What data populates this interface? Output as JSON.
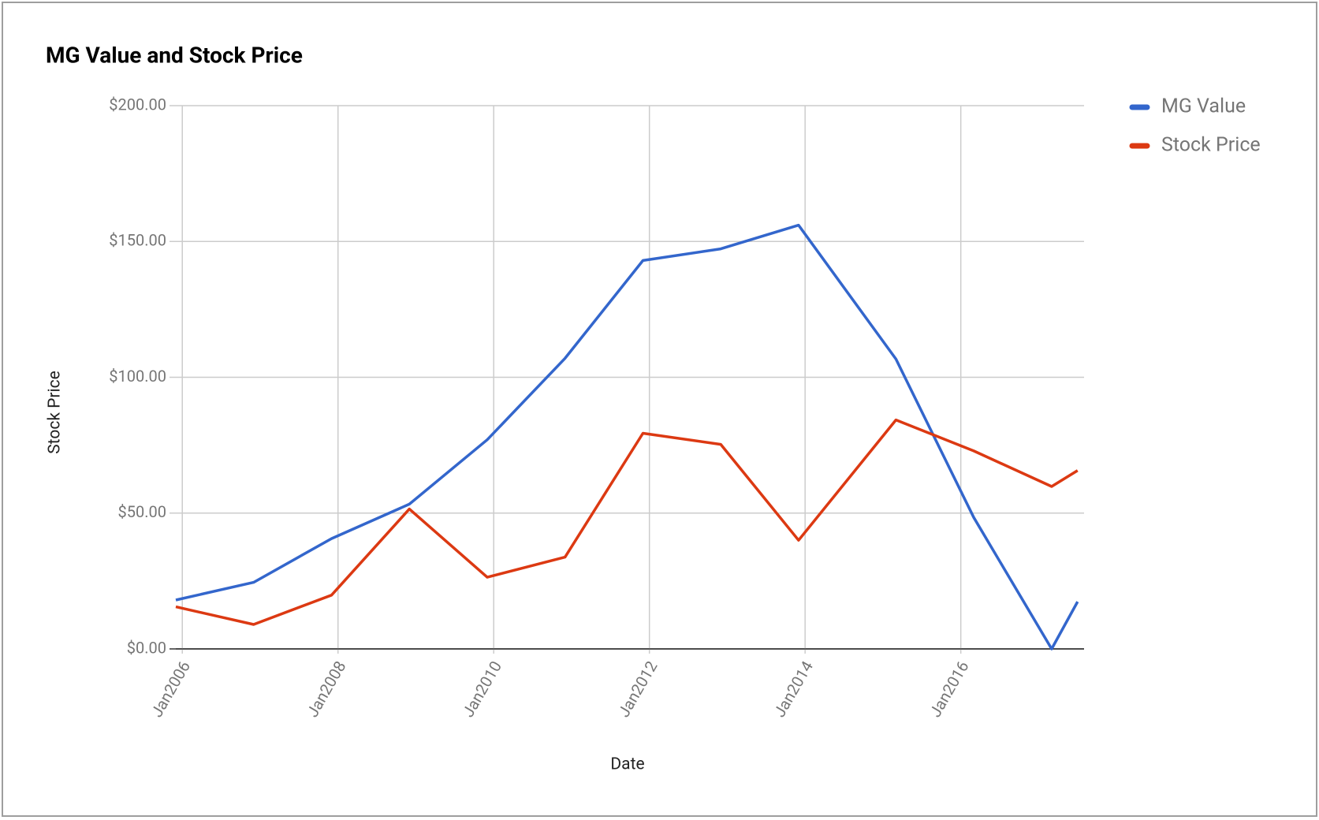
{
  "chart_data": {
    "type": "line",
    "title": "MG Value and Stock Price",
    "x_label": "Date",
    "y_label": "Stock Price",
    "x": [
      "2005-12",
      "2006-12",
      "2007-12",
      "2008-12",
      "2009-12",
      "2010-12",
      "2011-12",
      "2012-12",
      "2013-12",
      "2015-03",
      "2016-03",
      "2017-03",
      "2017-07"
    ],
    "series": [
      {
        "name": "MG Value",
        "color": "#3366cc",
        "values": [
          18,
          24.5,
          40.6,
          53.3,
          77,
          107,
          143,
          147.3,
          156,
          106.7,
          48.4,
          0,
          17.4
        ]
      },
      {
        "name": "Stock Price",
        "color": "#dc3912",
        "values": [
          15.5,
          9,
          19.8,
          51.5,
          26.4,
          33.8,
          79.4,
          75.3,
          40,
          84.3,
          72.9,
          59.8,
          65.7
        ]
      }
    ],
    "xlim": [
      "2005-12",
      "2017-08"
    ],
    "xticks": [
      {
        "value": "2006-01",
        "label": "Jan2006"
      },
      {
        "value": "2008-01",
        "label": "Jan2008"
      },
      {
        "value": "2010-01",
        "label": "Jan2010"
      },
      {
        "value": "2012-01",
        "label": "Jan2012"
      },
      {
        "value": "2014-01",
        "label": "Jan2014"
      },
      {
        "value": "2016-01",
        "label": "Jan2016"
      }
    ],
    "ylim": [
      0,
      200
    ],
    "yticks": [
      {
        "value": 0,
        "label": "$0.00"
      },
      {
        "value": 50,
        "label": "$50.00"
      },
      {
        "value": 100,
        "label": "$100.00"
      },
      {
        "value": 150,
        "label": "$150.00"
      },
      {
        "value": 200,
        "label": "$200.00"
      }
    ],
    "grid": true,
    "legend": "right"
  }
}
